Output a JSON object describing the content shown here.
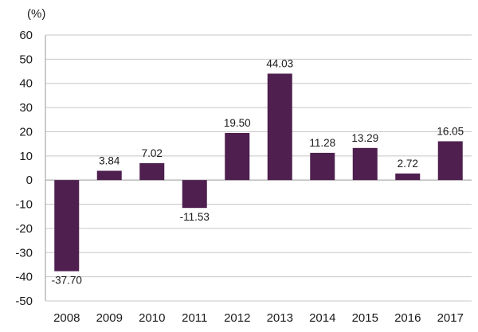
{
  "chart_data": {
    "type": "bar",
    "title": "",
    "xlabel": "",
    "ylabel": "(%)",
    "categories": [
      "2008",
      "2009",
      "2010",
      "2011",
      "2012",
      "2013",
      "2014",
      "2015",
      "2016",
      "2017"
    ],
    "values": [
      -37.7,
      3.84,
      7.02,
      -11.53,
      19.5,
      44.03,
      11.28,
      13.29,
      2.72,
      16.05
    ],
    "value_labels": [
      "-37.70",
      "3.84",
      "7.02",
      "-11.53",
      "19.50",
      "44.03",
      "11.28",
      "13.29",
      "2.72",
      "16.05"
    ],
    "ylim": [
      -50,
      60
    ],
    "yticks": [
      60,
      50,
      40,
      30,
      20,
      10,
      0,
      -10,
      -20,
      -30,
      -40,
      -50
    ],
    "grid": true,
    "legend": "none",
    "colors": {
      "bar": "#4e1f4f",
      "grid": "#c8c8c8",
      "axis": "#9a9a9a"
    }
  }
}
